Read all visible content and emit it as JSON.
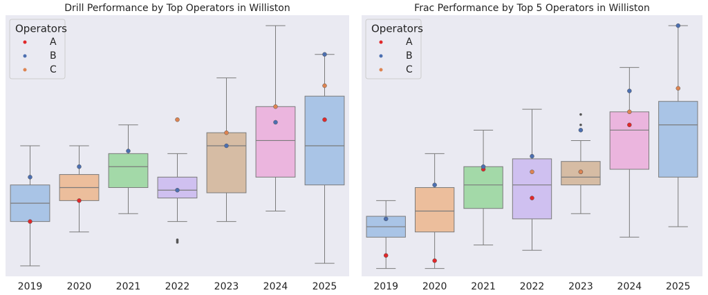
{
  "chart_data": [
    {
      "type": "box",
      "title": "Drill Performance by Top Operators in Williston",
      "categories": [
        "2019",
        "2020",
        "2021",
        "2022",
        "2023",
        "2024",
        "2025"
      ],
      "boxes": [
        {
          "whislo": 4,
          "q1": 21,
          "med": 28,
          "q3": 35,
          "whishi": 50,
          "fliers": []
        },
        {
          "whislo": 17,
          "q1": 29,
          "med": 34,
          "q3": 39,
          "whishi": 50,
          "fliers": []
        },
        {
          "whislo": 24,
          "q1": 34,
          "med": 42,
          "q3": 47,
          "whishi": 58,
          "fliers": []
        },
        {
          "whislo": 21,
          "q1": 30,
          "med": 33,
          "q3": 38,
          "whishi": 47,
          "fliers": [
            14,
            13.5,
            13
          ]
        },
        {
          "whislo": 21,
          "q1": 32,
          "med": 50,
          "q3": 55,
          "whishi": 76,
          "fliers": []
        },
        {
          "whislo": 25,
          "q1": 38,
          "med": 52,
          "q3": 65,
          "whishi": 96,
          "fliers": []
        },
        {
          "whislo": 5,
          "q1": 35,
          "med": 50,
          "q3": 69,
          "whishi": 85,
          "fliers": []
        }
      ],
      "colors": [
        "#a9c4e6",
        "#ecbe9c",
        "#a3d9a8",
        "#cfc0f0",
        "#d6bca4",
        "#ebb5de",
        "#a9c4e6"
      ],
      "legend_title": "Operators",
      "legend": "upper left",
      "series": [
        {
          "name": "A",
          "color": "#e0282a",
          "values": [
            21,
            29,
            null,
            null,
            null,
            null,
            60
          ]
        },
        {
          "name": "B",
          "color": "#4c6fb0",
          "values": [
            38,
            42,
            48,
            33,
            50,
            59,
            85
          ]
        },
        {
          "name": "C",
          "color": "#dd8452",
          "values": [
            null,
            null,
            null,
            60,
            55,
            65,
            73
          ]
        }
      ],
      "ylim": [
        0,
        100
      ]
    },
    {
      "type": "box",
      "title": "Frac Performance by Top 5 Operators in Williston",
      "categories": [
        "2019",
        "2020",
        "2021",
        "2022",
        "2023",
        "2024",
        "2025"
      ],
      "boxes": [
        {
          "whislo": 3,
          "q1": 15,
          "med": 19,
          "q3": 23,
          "whishi": 29,
          "fliers": []
        },
        {
          "whislo": 3,
          "q1": 17,
          "med": 25,
          "q3": 34,
          "whishi": 47,
          "fliers": []
        },
        {
          "whislo": 12,
          "q1": 26,
          "med": 35,
          "q3": 42,
          "whishi": 56,
          "fliers": []
        },
        {
          "whislo": 10,
          "q1": 22,
          "med": 35,
          "q3": 45,
          "whishi": 64,
          "fliers": []
        },
        {
          "whislo": 24,
          "q1": 35,
          "med": 38,
          "q3": 44,
          "whishi": 52,
          "fliers": [
            62,
            58
          ]
        },
        {
          "whislo": 15,
          "q1": 41,
          "med": 56,
          "q3": 63,
          "whishi": 80,
          "fliers": []
        },
        {
          "whislo": 19,
          "q1": 38,
          "med": 58,
          "q3": 67,
          "whishi": 96,
          "fliers": []
        }
      ],
      "colors": [
        "#a9c4e6",
        "#ecbe9c",
        "#a3d9a8",
        "#cfc0f0",
        "#d6bca4",
        "#ebb5de",
        "#a9c4e6"
      ],
      "legend_title": "Operators",
      "legend": "upper left",
      "series": [
        {
          "name": "A",
          "color": "#e0282a",
          "values": [
            8,
            6,
            41,
            30,
            40,
            58,
            null
          ]
        },
        {
          "name": "B",
          "color": "#4c6fb0",
          "values": [
            22,
            35,
            42,
            46,
            56,
            71,
            96
          ]
        },
        {
          "name": "C",
          "color": "#dd8452",
          "values": [
            null,
            null,
            null,
            40,
            40,
            63,
            72
          ]
        }
      ],
      "ylim": [
        0,
        100
      ]
    }
  ]
}
